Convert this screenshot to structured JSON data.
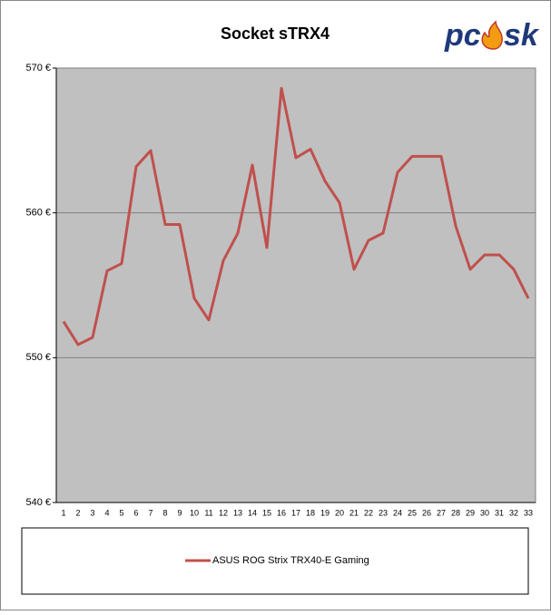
{
  "logo": {
    "left": "pc",
    "right": "sk"
  },
  "chart_data": {
    "type": "line",
    "title": "Socket sTRX4",
    "categories": [
      "1",
      "2",
      "3",
      "4",
      "5",
      "6",
      "7",
      "8",
      "9",
      "10",
      "11",
      "12",
      "13",
      "14",
      "15",
      "16",
      "17",
      "18",
      "19",
      "20",
      "21",
      "22",
      "23",
      "24",
      "25",
      "26",
      "27",
      "28",
      "29",
      "30",
      "31",
      "32",
      "33"
    ],
    "series": [
      {
        "name": "ASUS ROG Strix TRX40-E Gaming",
        "color": "#c0504d",
        "values": [
          552.5,
          550.9,
          551.4,
          556.0,
          556.5,
          563.2,
          564.3,
          559.2,
          559.2,
          554.1,
          552.6,
          556.7,
          558.6,
          563.3,
          557.6,
          568.6,
          563.8,
          564.4,
          562.2,
          560.7,
          556.1,
          558.1,
          558.6,
          562.8,
          563.9,
          563.9,
          563.9,
          559.1,
          556.1,
          557.1,
          557.1,
          556.1,
          554.1
        ]
      }
    ],
    "ylim": [
      540,
      570
    ],
    "yticks": [
      {
        "value": 540,
        "label": "540 €"
      },
      {
        "value": 550,
        "label": "550 €"
      },
      {
        "value": 560,
        "label": "560 €"
      },
      {
        "value": 570,
        "label": "570 €"
      }
    ],
    "grid": true,
    "plot_background": "#c0c0c0"
  }
}
